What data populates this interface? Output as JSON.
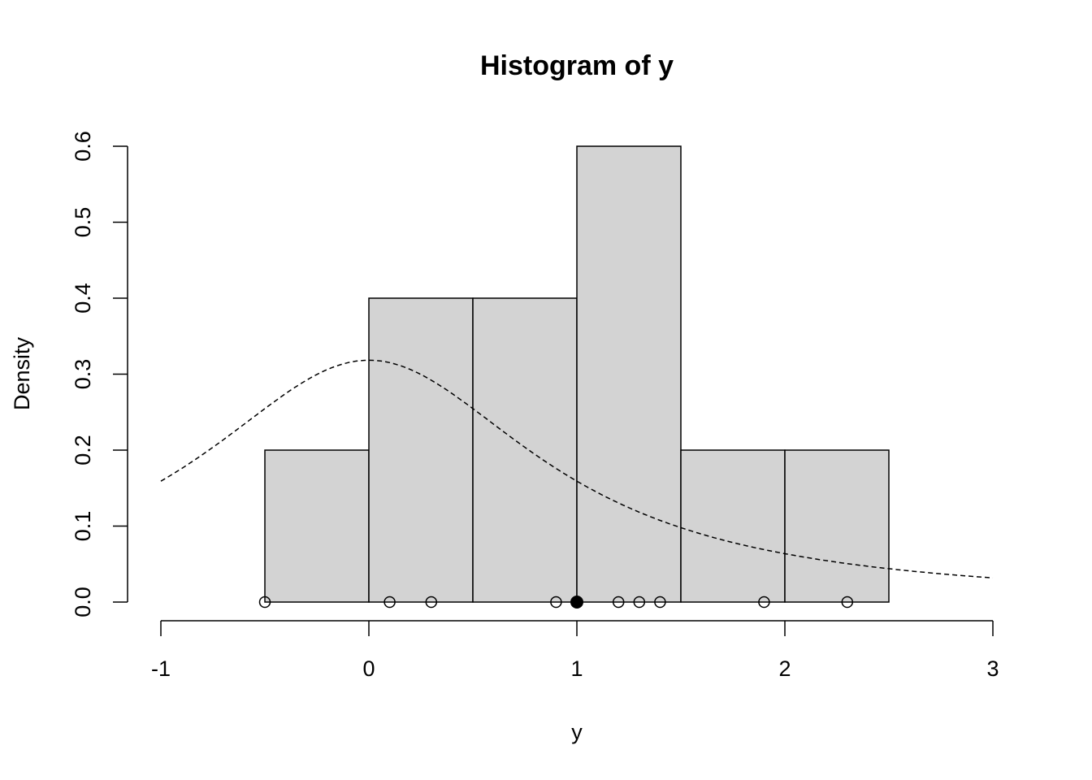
{
  "chart_data": {
    "type": "histogram",
    "title": "Histogram of y",
    "xlabel": "y",
    "ylabel": "Density",
    "xlim": [
      -1,
      3
    ],
    "ylim": [
      0,
      0.6
    ],
    "x_ticks": [
      "-1",
      "0",
      "1",
      "2",
      "3"
    ],
    "y_ticks": [
      "0.0",
      "0.1",
      "0.2",
      "0.3",
      "0.4",
      "0.5",
      "0.6"
    ],
    "bins": [
      {
        "from": -0.5,
        "to": 0.0,
        "density": 0.2
      },
      {
        "from": 0.0,
        "to": 0.5,
        "density": 0.4
      },
      {
        "from": 0.5,
        "to": 1.0,
        "density": 0.4
      },
      {
        "from": 1.0,
        "to": 1.5,
        "density": 0.6
      },
      {
        "from": 1.5,
        "to": 2.0,
        "density": 0.2
      },
      {
        "from": 2.0,
        "to": 2.5,
        "density": 0.2
      }
    ],
    "bar_fill": "#d3d3d3",
    "observations": [
      -0.5,
      0.1,
      0.3,
      0.9,
      1.2,
      1.3,
      1.4,
      1.9,
      2.3
    ],
    "highlighted_point": 1.0,
    "curve": {
      "distribution": "Cauchy(0,1) density",
      "style": "dashed",
      "from": -1,
      "to": 3
    },
    "grid": false
  }
}
